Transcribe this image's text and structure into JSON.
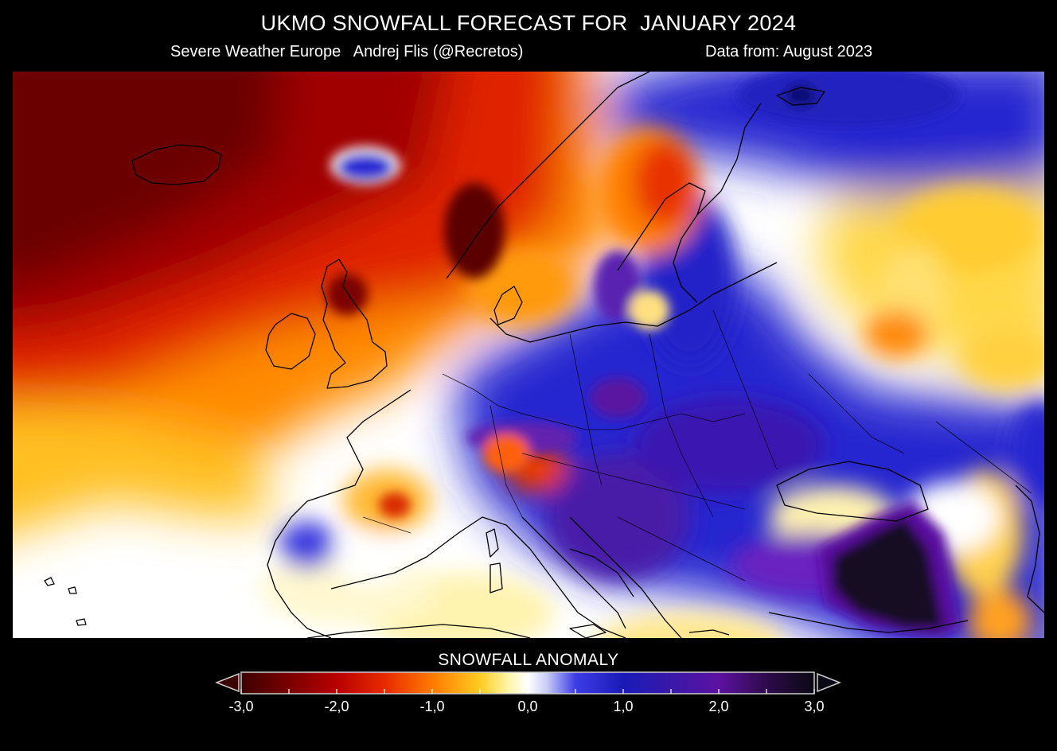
{
  "title": "UKMO SNOWFALL FORECAST FOR  JANUARY 2024",
  "subtitle_left": "Severe Weather Europe   Andrej Flis (@Recretos)",
  "subtitle_right": "Data from: August 2023",
  "legend": {
    "title": "SNOWFALL ANOMALY",
    "ticks": [
      "-3,0",
      "-2,0",
      "-1,0",
      "0,0",
      "1,0",
      "2,0",
      "3,0"
    ],
    "stops": [
      {
        "value": -3.0,
        "color": "#3d0000"
      },
      {
        "value": -2.5,
        "color": "#7a0000"
      },
      {
        "value": -2.0,
        "color": "#b80000"
      },
      {
        "value": -1.5,
        "color": "#e82a00"
      },
      {
        "value": -1.0,
        "color": "#ff7a00"
      },
      {
        "value": -0.5,
        "color": "#ffcc22"
      },
      {
        "value": -0.2,
        "color": "#fff6a8"
      },
      {
        "value": 0.0,
        "color": "#ffffff"
      },
      {
        "value": 0.2,
        "color": "#c9cdf6"
      },
      {
        "value": 0.5,
        "color": "#3d3de6"
      },
      {
        "value": 1.0,
        "color": "#1a1ab8"
      },
      {
        "value": 1.5,
        "color": "#3a18a8"
      },
      {
        "value": 2.0,
        "color": "#5c12a0"
      },
      {
        "value": 2.5,
        "color": "#2e0a4a"
      },
      {
        "value": 3.0,
        "color": "#0a0a14"
      }
    ]
  }
}
